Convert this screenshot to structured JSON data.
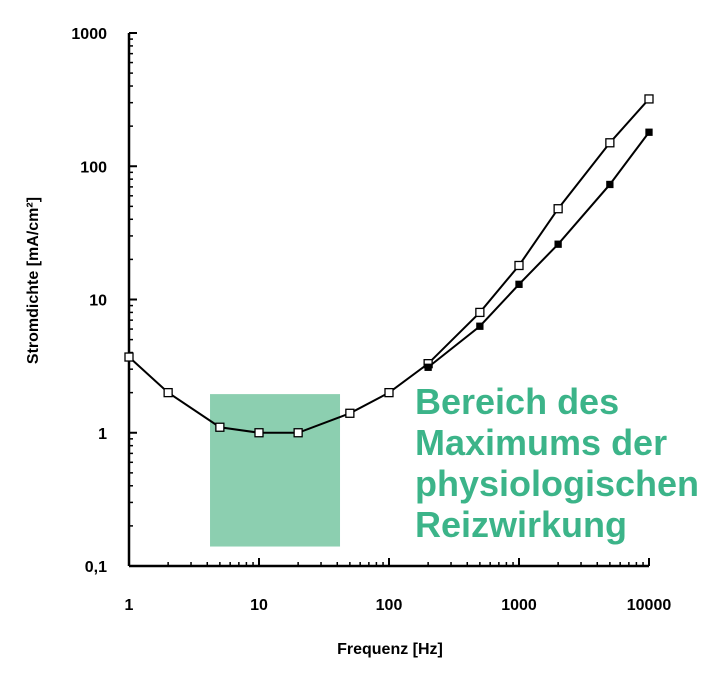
{
  "chart_data": {
    "type": "line",
    "xlabel": "Frequenz [Hz]",
    "ylabel": "Stromdichte [mA/cm²]",
    "x_scale": "log",
    "y_scale": "log",
    "xlim": [
      1,
      10000
    ],
    "ylim": [
      0.1,
      1000
    ],
    "x_ticks": [
      {
        "value": 1,
        "label": "1"
      },
      {
        "value": 10,
        "label": "10"
      },
      {
        "value": 100,
        "label": "100"
      },
      {
        "value": 1000,
        "label": "1000"
      },
      {
        "value": 10000,
        "label": "10000"
      }
    ],
    "y_ticks": [
      {
        "value": 0.1,
        "label": "0,1"
      },
      {
        "value": 1,
        "label": "1"
      },
      {
        "value": 10,
        "label": "10"
      },
      {
        "value": 100,
        "label": "100"
      },
      {
        "value": 1000,
        "label": "1000"
      }
    ],
    "grid": false,
    "series": [
      {
        "marker": "open-square",
        "color": "#000000",
        "x": [
          1,
          2,
          5,
          10,
          20,
          50,
          100,
          200,
          500,
          1000,
          2000,
          5000,
          10000
        ],
        "y": [
          3.7,
          2.0,
          1.1,
          1.0,
          1.0,
          1.4,
          2.0,
          3.3,
          8.0,
          18,
          48,
          150,
          320
        ]
      },
      {
        "marker": "filled-square",
        "color": "#000000",
        "x": [
          200,
          500,
          1000,
          2000,
          5000,
          10000
        ],
        "y": [
          3.1,
          6.3,
          13,
          26,
          73,
          180
        ]
      }
    ],
    "highlight_region": {
      "x_range": [
        4.2,
        42
      ],
      "y_range": [
        0.14,
        1.95
      ],
      "color": "#8ccfb0"
    },
    "annotation": {
      "lines": [
        "Bereich des",
        "Maximums der",
        "physiologischen",
        "Reizwirkung"
      ],
      "color": "#3cb489"
    }
  }
}
